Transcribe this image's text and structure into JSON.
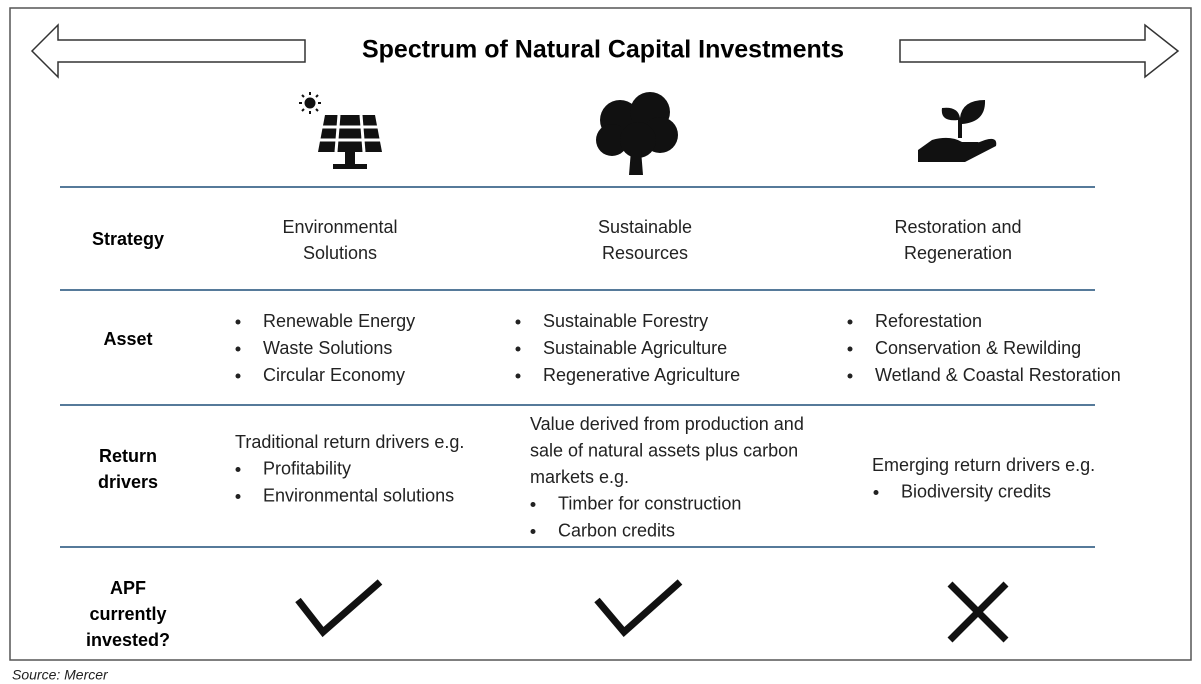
{
  "title": "Spectrum of Natural Capital Investments",
  "row_labels": {
    "strategy": "Strategy",
    "asset": "Asset",
    "returns": [
      "Return",
      "drivers"
    ],
    "invested": [
      "APF",
      "currently",
      "invested?"
    ]
  },
  "columns": [
    {
      "strategy": [
        "Environmental",
        "Solutions"
      ],
      "assets": [
        "Renewable Energy",
        "Waste Solutions",
        "Circular Economy"
      ],
      "returns_intro": [
        "Traditional return drivers e.g."
      ],
      "returns_bullets": [
        "Profitability",
        "Environmental solutions"
      ]
    },
    {
      "strategy": [
        "Sustainable",
        "Resources"
      ],
      "assets": [
        "Sustainable Forestry",
        "Sustainable Agriculture",
        "Regenerative Agriculture"
      ],
      "returns_intro": [
        "Value derived from production and",
        "sale of natural assets plus carbon",
        "markets e.g."
      ],
      "returns_bullets": [
        "Timber for construction",
        "Carbon credits"
      ]
    },
    {
      "strategy": [
        "Restoration and",
        "Regeneration"
      ],
      "assets": [
        "Reforestation",
        "Conservation & Rewilding",
        "Wetland & Coastal Restoration"
      ],
      "returns_intro": [
        "Emerging return drivers e.g."
      ],
      "returns_bullets": [
        "Biodiversity credits"
      ]
    }
  ],
  "source": "Source: Mercer"
}
